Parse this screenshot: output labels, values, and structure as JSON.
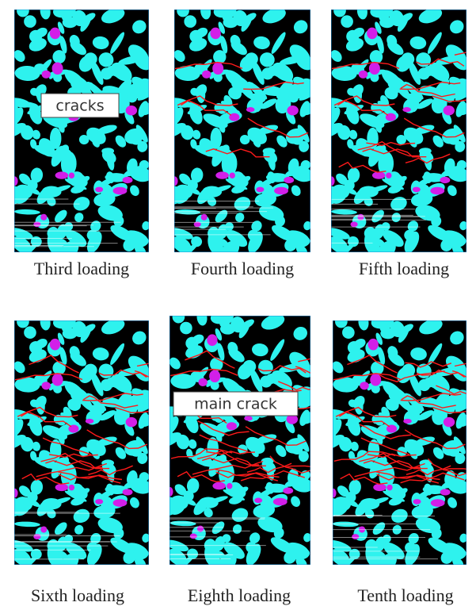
{
  "panels": [
    {
      "caption": "Third loading",
      "annotation": "cracks"
    },
    {
      "caption": "Fourth loading"
    },
    {
      "caption": "Fifth loading"
    },
    {
      "caption": "Sixth loading"
    },
    {
      "caption": "Eighth loading",
      "annotation": "main crack"
    },
    {
      "caption": "Tenth loading"
    }
  ]
}
